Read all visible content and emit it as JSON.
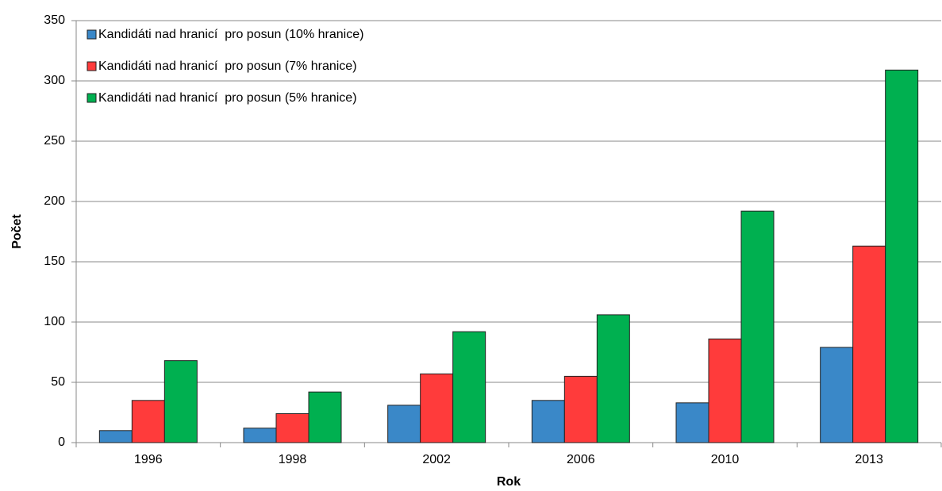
{
  "chart_data": {
    "type": "bar",
    "x_label": "Rok",
    "y_label": "Počet",
    "categories": [
      "1996",
      "1998",
      "2002",
      "2006",
      "2010",
      "2013"
    ],
    "series": [
      {
        "name": "Kandidáti nad hranicí  pro posun (10% hranice)",
        "color": "#3a88c8",
        "values": [
          10,
          12,
          31,
          35,
          33,
          79
        ]
      },
      {
        "name": "Kandidáti nad hranicí  pro posun (7% hranice)",
        "color": "#ff3b3b",
        "values": [
          35,
          24,
          57,
          55,
          86,
          163
        ]
      },
      {
        "name": "Kandidáti nad hranicí  pro posun (5% hranice)",
        "color": "#00b050",
        "values": [
          68,
          42,
          92,
          106,
          192,
          309
        ]
      }
    ],
    "ylim": [
      0,
      350
    ],
    "yticks": [
      0,
      50,
      100,
      150,
      200,
      250,
      300,
      350
    ],
    "grid": true,
    "legend": "top-left"
  }
}
